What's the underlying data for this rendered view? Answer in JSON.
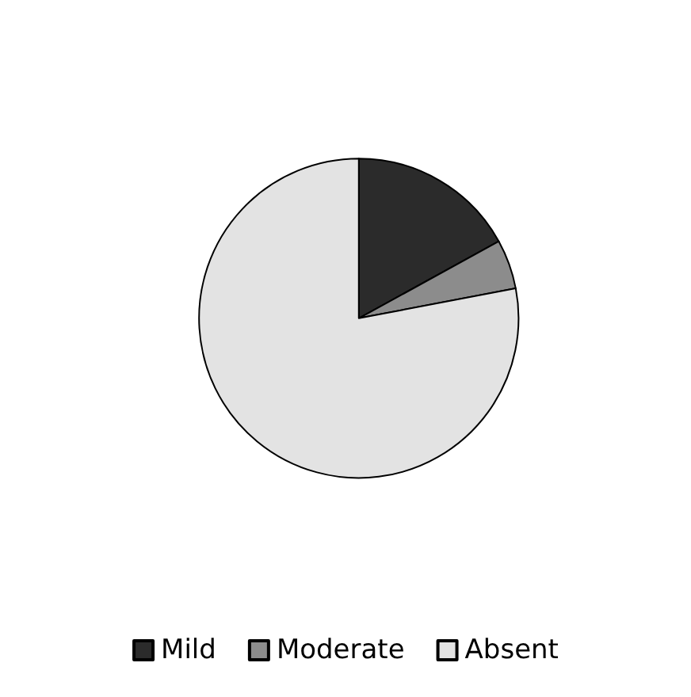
{
  "chart_data": {
    "type": "pie",
    "categories": [
      "Mild",
      "Moderate",
      "Absent"
    ],
    "values": [
      17,
      5,
      78
    ],
    "colors": [
      "#2b2b2b",
      "#8c8c8c",
      "#e3e3e3"
    ],
    "legend": "bottom"
  }
}
